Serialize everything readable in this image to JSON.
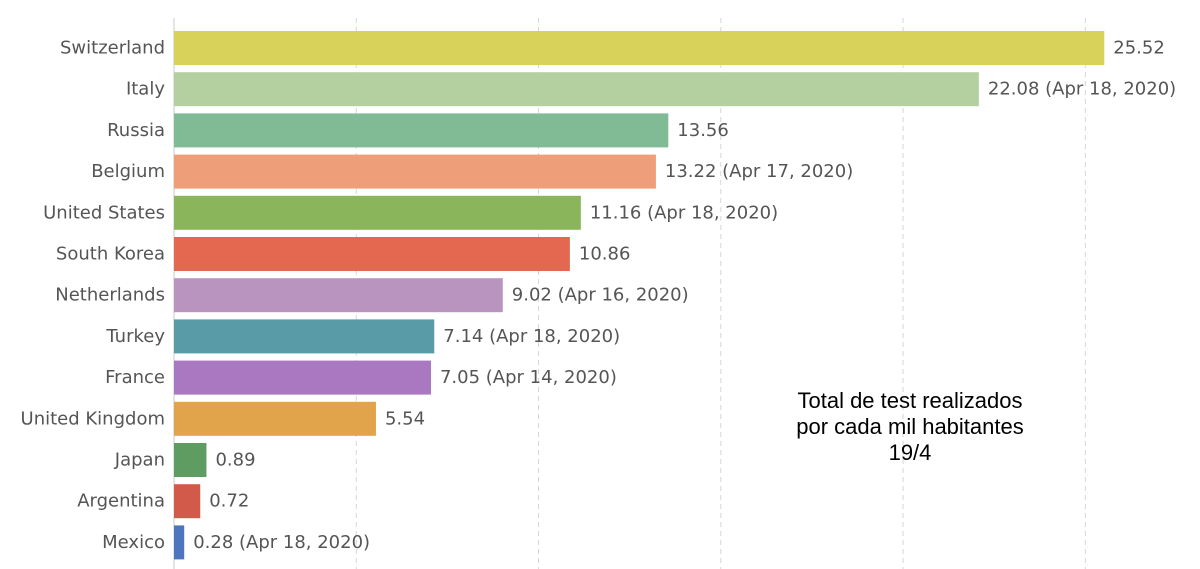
{
  "chart_data": {
    "type": "bar",
    "orientation": "horizontal",
    "categories": [
      "Switzerland",
      "Italy",
      "Russia",
      "Belgium",
      "United States",
      "South Korea",
      "Netherlands",
      "Turkey",
      "France",
      "United Kingdom",
      "Japan",
      "Argentina",
      "Mexico"
    ],
    "values": [
      25.52,
      22.08,
      13.56,
      13.22,
      11.16,
      10.86,
      9.02,
      7.14,
      7.05,
      5.54,
      0.89,
      0.72,
      0.28
    ],
    "value_labels": [
      "25.52",
      "22.08 (Apr 18, 2020)",
      "13.56",
      "13.22 (Apr 17, 2020)",
      "11.16 (Apr 18, 2020)",
      "10.86",
      "9.02 (Apr 16, 2020)",
      "7.14 (Apr 18, 2020)",
      "7.05 (Apr 14, 2020)",
      "5.54",
      "0.89",
      "0.72",
      "0.28 (Apr 18, 2020)"
    ],
    "colors": [
      "#d8d15a",
      "#b5d0a0",
      "#80bb96",
      "#ee9e79",
      "#8bb55a",
      "#e4684f",
      "#b994bf",
      "#5a9ba8",
      "#aa78c0",
      "#e1a44b",
      "#5e9c61",
      "#d25a4a",
      "#4f75bf"
    ],
    "xlim": [
      0,
      26.5
    ],
    "gridlines": [
      0,
      5,
      10,
      15,
      20,
      25
    ],
    "grid": true,
    "legend": "none",
    "title": "",
    "xlabel": "",
    "ylabel": ""
  },
  "annotation": {
    "lines": [
      "Total de test realizados",
      "por cada mil habitantes",
      "19/4"
    ]
  }
}
